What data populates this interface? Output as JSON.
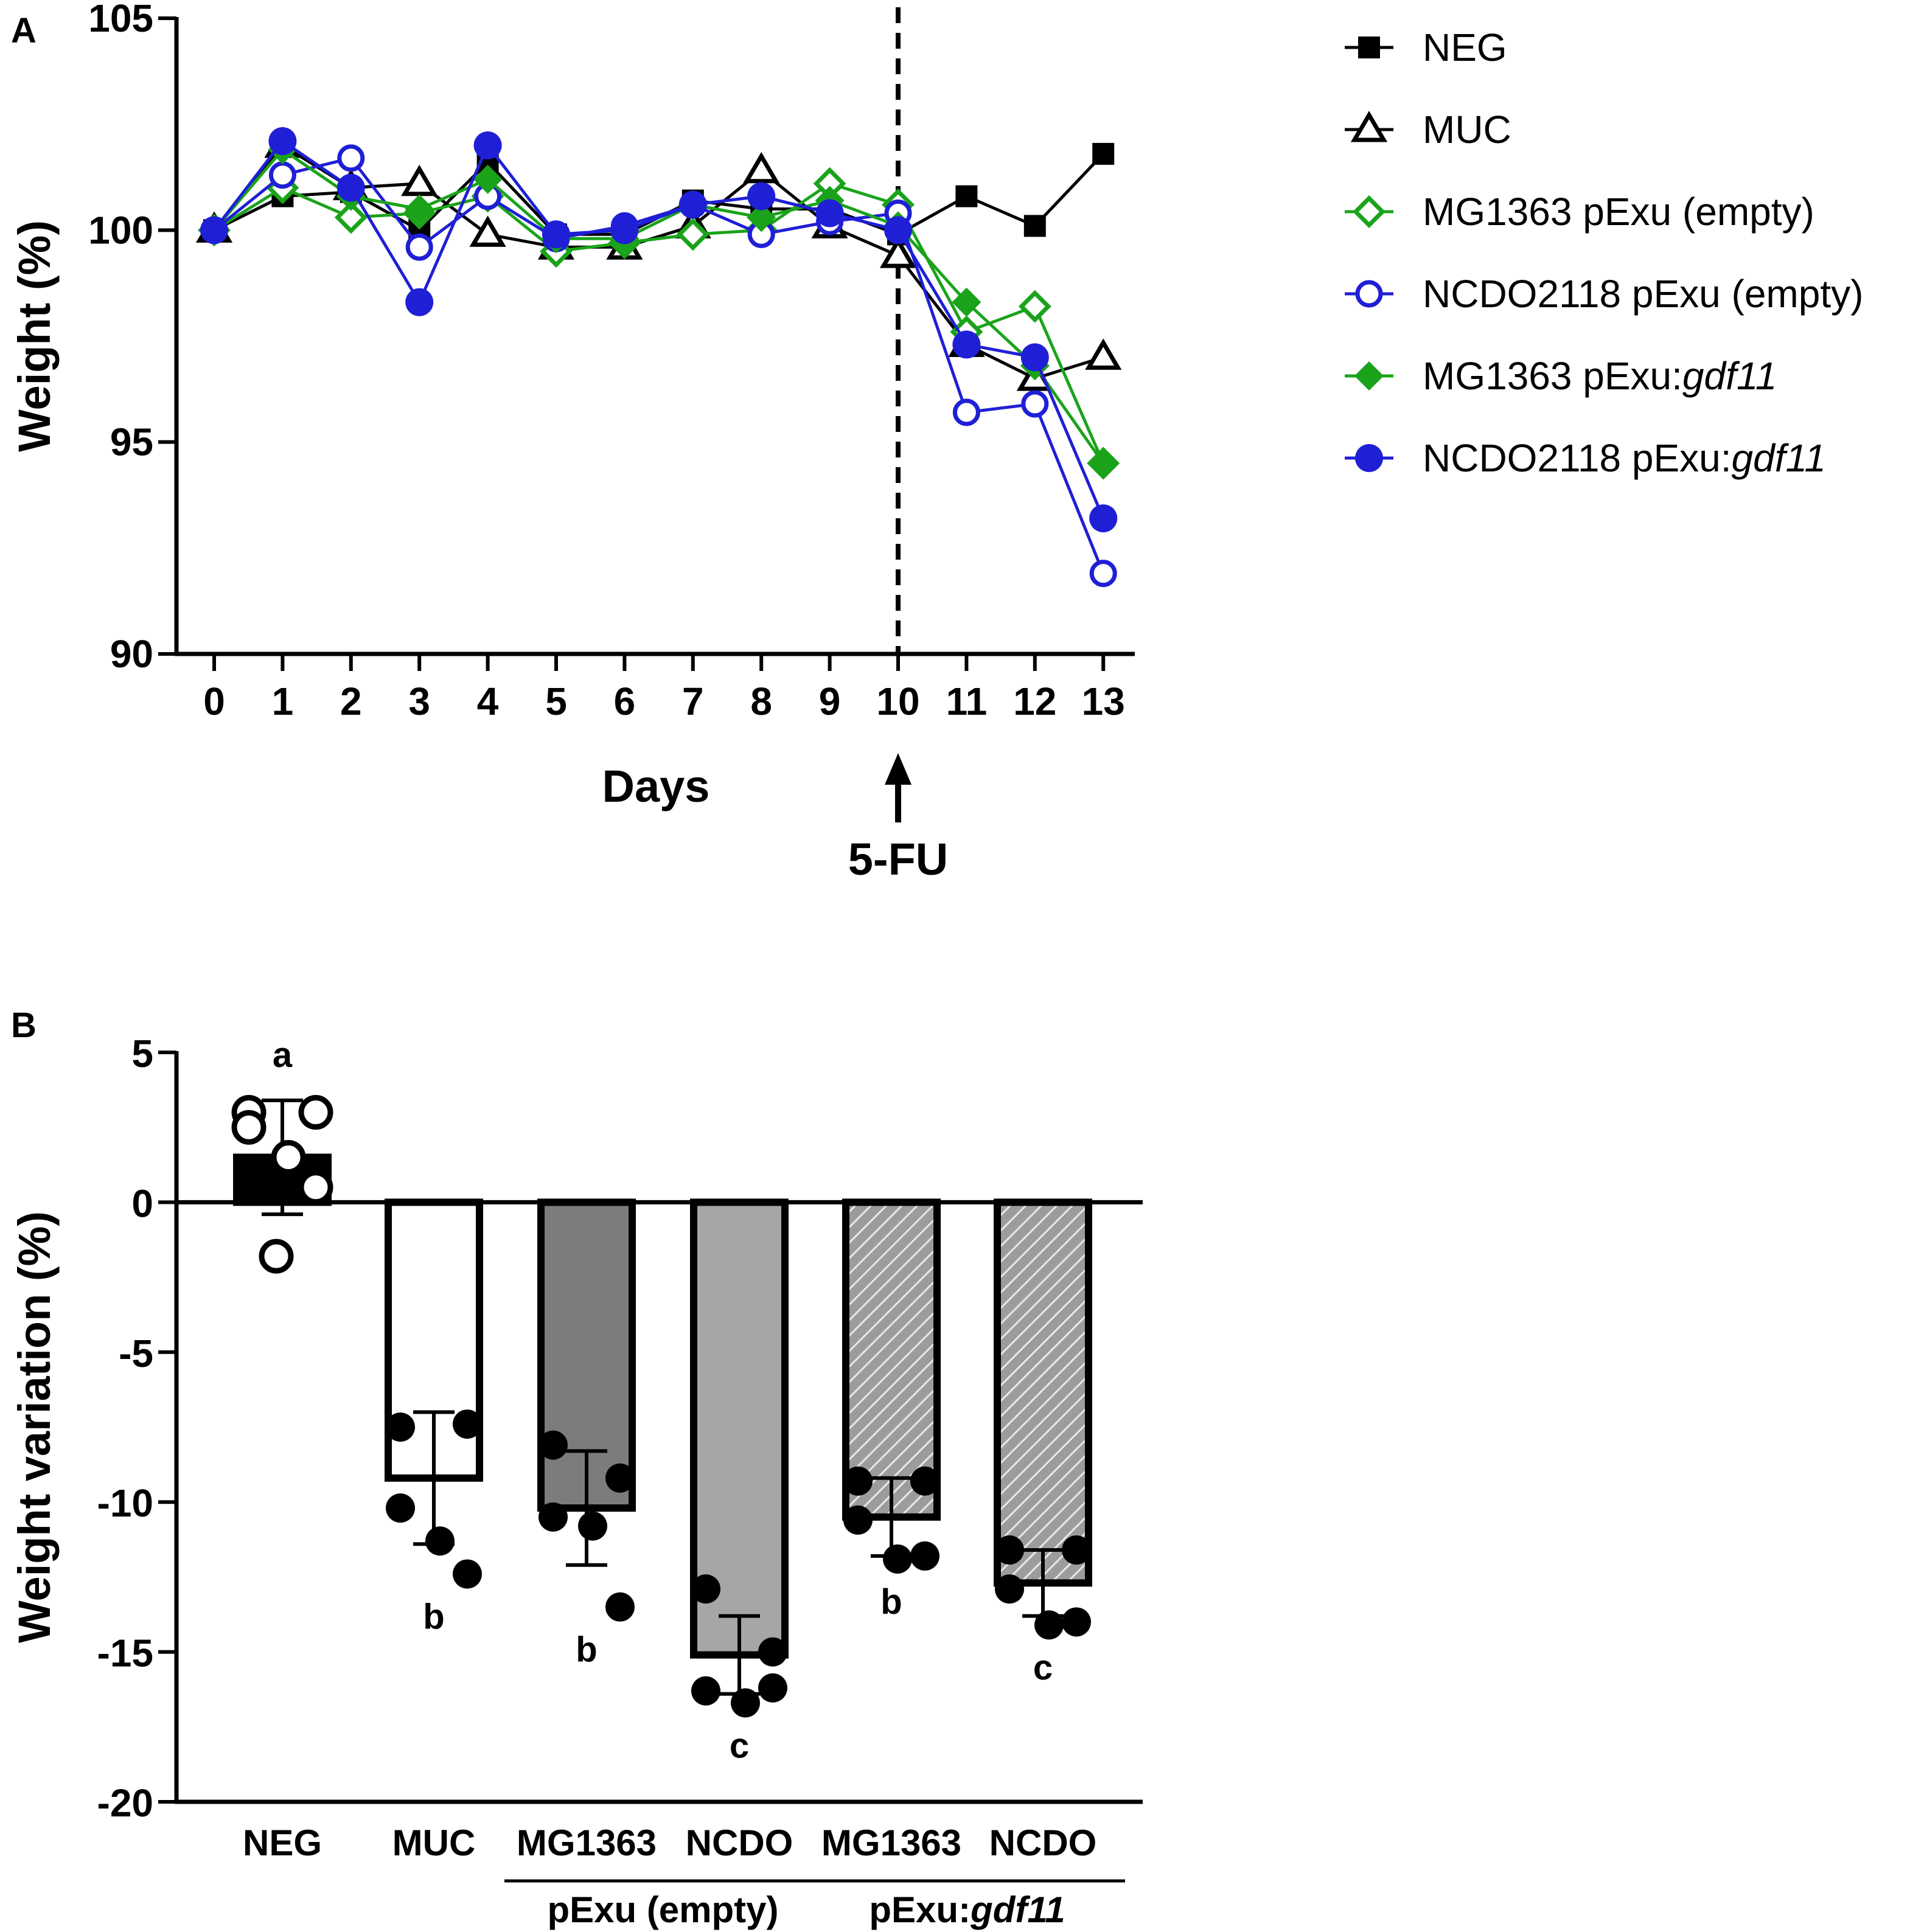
{
  "chart_data": [
    {
      "panel": "A",
      "type": "line",
      "xlabel": "Days",
      "ylabel": "Weight  (%)",
      "x": [
        0,
        1,
        2,
        3,
        4,
        5,
        6,
        7,
        8,
        9,
        10,
        11,
        12,
        13
      ],
      "xticks": [
        "0",
        "1",
        "2",
        "3",
        "4",
        "5",
        "6",
        "7",
        "8",
        "9",
        "10",
        "11",
        "12",
        "13"
      ],
      "ylim": [
        90,
        105
      ],
      "yticks": [
        "90",
        "95",
        "100",
        "105"
      ],
      "ytick_values": [
        90,
        95,
        100,
        105
      ],
      "grid": false,
      "legend_position": "right",
      "annotation": {
        "label": "5-FU",
        "x": 10,
        "line": "dashed vertical",
        "arrow": "up"
      },
      "series": [
        {
          "name": "NEG",
          "marker": "square-filled",
          "color": "#000000",
          "values": [
            100,
            100.8,
            100.9,
            100.0,
            101.6,
            99.9,
            99.9,
            100.7,
            100.5,
            100.5,
            99.9,
            100.8,
            100.1,
            101.8
          ]
        },
        {
          "name": "MUC",
          "marker": "triangle-open",
          "color": "#000000",
          "values": [
            100,
            102.0,
            101.0,
            101.1,
            99.9,
            99.6,
            99.6,
            100.1,
            101.4,
            100.1,
            99.4,
            97.3,
            96.5,
            97.0
          ]
        },
        {
          "name": "MG1363 pExu (empty)",
          "marker": "diamond-open",
          "color": "#1aa31a",
          "values": [
            100,
            101.0,
            100.3,
            100.4,
            100.8,
            99.5,
            99.7,
            99.9,
            100.0,
            101.1,
            100.6,
            97.6,
            98.2,
            94.5
          ]
        },
        {
          "name": "NCDO2118 pExu (empty)",
          "marker": "circle-open",
          "color": "#1f1fd6",
          "values": [
            100,
            101.3,
            101.7,
            99.6,
            100.8,
            99.8,
            100.1,
            100.6,
            99.9,
            100.2,
            100.4,
            95.7,
            95.9,
            91.9
          ]
        },
        {
          "name": "MG1363 pExu:gdf11",
          "marker": "diamond-filled",
          "color": "#1aa31a",
          "values": [
            100,
            101.9,
            100.8,
            100.5,
            101.2,
            99.8,
            99.8,
            100.6,
            100.3,
            100.7,
            100.1,
            98.3,
            96.8,
            94.5
          ]
        },
        {
          "name": "NCDO2118 pExu:gdf11",
          "marker": "circle-filled",
          "color": "#1f1fd6",
          "values": [
            100,
            102.1,
            101.0,
            98.3,
            102.0,
            99.9,
            100.0,
            100.6,
            100.8,
            100.4,
            100.0,
            97.3,
            97.0,
            93.2
          ]
        }
      ],
      "legend": [
        {
          "label": "NEG",
          "italic": ""
        },
        {
          "label": "MUC",
          "italic": ""
        },
        {
          "label": "MG1363 pExu (empty)",
          "italic": ""
        },
        {
          "label": "NCDO2118 pExu (empty)",
          "italic": ""
        },
        {
          "label": "MG1363 pExu:",
          "italic": "gdf11"
        },
        {
          "label": "NCDO2118 pExu:",
          "italic": "gdf11"
        }
      ]
    },
    {
      "panel": "B",
      "type": "bar",
      "ylabel": "Weight variation (%)",
      "ylim": [
        -20,
        5
      ],
      "yticks": [
        "5",
        "0",
        "-5",
        "-10",
        "-15",
        "-20"
      ],
      "ytick_values": [
        5,
        0,
        -5,
        -10,
        -15,
        -20
      ],
      "grid": false,
      "categories": [
        "NEG",
        "MUC",
        "MG1363",
        "NCDO",
        "MG1363",
        "NCDO"
      ],
      "groups": [
        {
          "label": "pExu (empty)",
          "italic": "",
          "categories": [
            2,
            3
          ]
        },
        {
          "label": "pExu:",
          "italic": "gdf11",
          "categories": [
            4,
            5
          ]
        }
      ],
      "bars": [
        {
          "value": 1.5,
          "error": 1.9,
          "fill": "#000000",
          "pattern": "solid",
          "letter": "a",
          "letter_pos": "above",
          "points": [
            3.0,
            3.0,
            2.5,
            1.5,
            0.5,
            -1.8
          ]
        },
        {
          "value": -9.2,
          "error": 2.2,
          "fill": "#ffffff",
          "pattern": "solid",
          "letter": "b",
          "letter_pos": "below",
          "points": [
            -7.5,
            -7.4,
            -10.2,
            -11.3,
            -12.4
          ]
        },
        {
          "value": -10.2,
          "error": 1.9,
          "fill": "#7c7c7c",
          "pattern": "solid",
          "letter": "b",
          "letter_pos": "below",
          "points": [
            -8.1,
            -9.2,
            -10.5,
            -10.8,
            -13.5
          ]
        },
        {
          "value": -15.1,
          "error": 1.3,
          "fill": "#a6a6a8",
          "pattern": "solid",
          "letter": "c",
          "letter_pos": "below",
          "points": [
            -12.9,
            -15.0,
            -16.3,
            -16.7,
            -16.2
          ]
        },
        {
          "value": -10.5,
          "error": 1.3,
          "fill": "#9c9c9c",
          "pattern": "hatch",
          "letter": "b",
          "letter_pos": "below",
          "points": [
            -9.3,
            -9.3,
            -10.6,
            -11.9,
            -11.8
          ]
        },
        {
          "value": -12.7,
          "error": 1.1,
          "fill": "#9c9c9c",
          "pattern": "hatch",
          "letter": "c",
          "letter_pos": "below",
          "points": [
            -11.6,
            -11.6,
            -12.9,
            -14.1,
            -14.0
          ]
        }
      ]
    }
  ]
}
